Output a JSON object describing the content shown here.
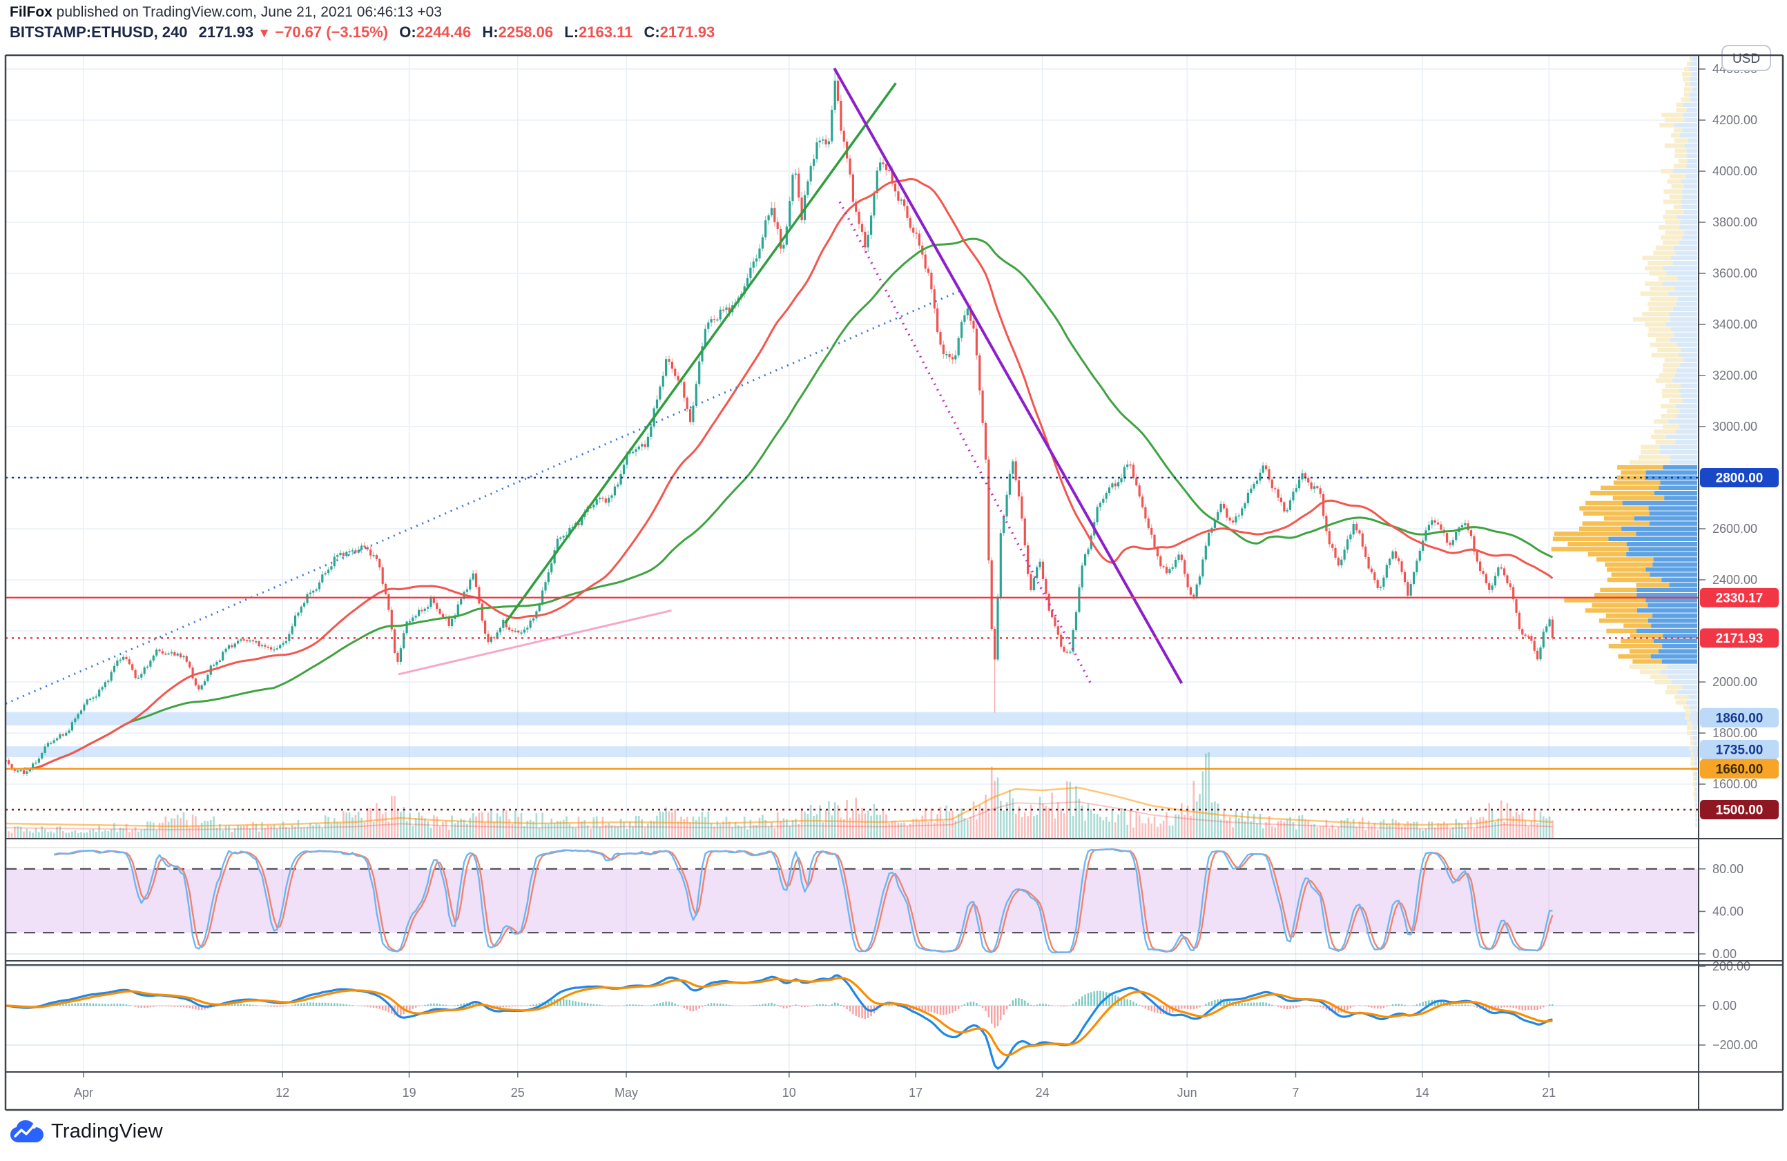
{
  "attribution": {
    "author": "FilFox",
    "rest": " published on TradingView.com, June 21, 2021 06:46:13 +03"
  },
  "symbol_line": {
    "symbol": "BITSTAMP:ETHUSD, 240",
    "last": "2171.93",
    "arrow": "▼",
    "change": "−70.67 (−3.15%)",
    "o_label": "O:",
    "o": "2244.46",
    "h_label": "H:",
    "h": "2258.06",
    "l_label": "L:",
    "l": "2163.11",
    "c_label": "C:",
    "c": "2171.93"
  },
  "currency_button": "USD",
  "watermark": "TradingView",
  "colors": {
    "grid": "#e8eff6",
    "frame": "#3e434c",
    "axis_text": "#73767f",
    "candle_up": "#2aa594",
    "candle_down": "#ef5350",
    "vol_up": "rgba(42,165,148,0.4)",
    "vol_down": "rgba(239,83,80,0.38)",
    "vol_ma1": "rgba(255,152,0,0.55)",
    "vol_ma2": "rgba(244,67,54,0.3)",
    "profile_pale_y": "#f8eecb",
    "profile_pale_b": "#d9e9f8",
    "profile_bright_y": "#f5bf52",
    "profile_bright_b": "#5ea1e4",
    "zone_blue": "rgba(144,191,249,0.38)",
    "stoch_k": "#6db6f2",
    "stoch_d": "#f2836e",
    "stoch_band": "rgba(164,80,222,0.17)",
    "stoch_dash": "#45494f",
    "macd_line": "#1e88e5",
    "macd_signal": "#fb8c00",
    "hist_pos": "rgba(38,166,154,0.6)",
    "hist_neg": "rgba(239,83,80,0.55)",
    "logo_blue": "#2962ff"
  },
  "chart_data": {
    "type": "candlestick+indicators",
    "symbol": "BITSTAMP:ETHUSD",
    "interval": "240",
    "price_axis": {
      "visible_min": 1386,
      "visible_max": 4454,
      "tick_step": 200,
      "ticks": [
        "4400.00",
        "4200.00",
        "4000.00",
        "3800.00",
        "3600.00",
        "3400.00",
        "3200.00",
        "3000.00",
        "2600.00",
        "2400.00",
        "2000.00",
        "1800.00",
        "1600.00"
      ],
      "tick_values": [
        4400,
        4200,
        4000,
        3800,
        3600,
        3400,
        3200,
        3000,
        2600,
        2400,
        2000,
        1800,
        1600
      ]
    },
    "time_axis": {
      "ticks": [
        {
          "label": "Apr",
          "t": 0
        },
        {
          "label": "12",
          "t": 11
        },
        {
          "label": "19",
          "t": 18
        },
        {
          "label": "25",
          "t": 24
        },
        {
          "label": "May",
          "t": 30
        },
        {
          "label": "10",
          "t": 39
        },
        {
          "label": "17",
          "t": 46
        },
        {
          "label": "24",
          "t": 53
        },
        {
          "label": "Jun",
          "t": 61
        },
        {
          "label": "7",
          "t": 67
        },
        {
          "label": "14",
          "t": 74
        },
        {
          "label": "21",
          "t": 81
        }
      ]
    },
    "last_candle": {
      "o": 2244.46,
      "h": 2258.06,
      "l": 2163.11,
      "c": 2171.93
    },
    "price_path_anchors": [
      [
        -4.3,
        1680
      ],
      [
        -3.8,
        1640
      ],
      [
        -3.2,
        1660
      ],
      [
        -2.5,
        1700
      ],
      [
        -1.5,
        1780
      ],
      [
        -0.5,
        1850
      ],
      [
        0.3,
        1920
      ],
      [
        1.2,
        2010
      ],
      [
        2.2,
        2090
      ],
      [
        3.0,
        2030
      ],
      [
        4.0,
        2100
      ],
      [
        5.2,
        2130
      ],
      [
        5.8,
        2060
      ],
      [
        6.3,
        1945
      ],
      [
        7.0,
        2070
      ],
      [
        8.2,
        2130
      ],
      [
        9.0,
        2190
      ],
      [
        10.2,
        2110
      ],
      [
        11.0,
        2160
      ],
      [
        12.2,
        2300
      ],
      [
        13.2,
        2430
      ],
      [
        14.5,
        2500
      ],
      [
        15.3,
        2550
      ],
      [
        16.2,
        2460
      ],
      [
        16.8,
        2330
      ],
      [
        17.3,
        2080
      ],
      [
        17.8,
        2210
      ],
      [
        18.5,
        2260
      ],
      [
        19.2,
        2340
      ],
      [
        20.2,
        2200
      ],
      [
        21.0,
        2360
      ],
      [
        21.5,
        2440
      ],
      [
        22.3,
        2130
      ],
      [
        23.2,
        2250
      ],
      [
        24.0,
        2170
      ],
      [
        24.6,
        2210
      ],
      [
        25.5,
        2390
      ],
      [
        26.2,
        2530
      ],
      [
        27.2,
        2640
      ],
      [
        28.2,
        2680
      ],
      [
        29.2,
        2750
      ],
      [
        30.0,
        2860
      ],
      [
        31.0,
        2940
      ],
      [
        32.2,
        3230
      ],
      [
        33.0,
        3190
      ],
      [
        33.6,
        3030
      ],
      [
        34.3,
        3350
      ],
      [
        35.2,
        3480
      ],
      [
        36.2,
        3460
      ],
      [
        37.2,
        3700
      ],
      [
        38.0,
        3850
      ],
      [
        38.6,
        3650
      ],
      [
        39.3,
        4060
      ],
      [
        39.7,
        3830
      ],
      [
        40.5,
        4080
      ],
      [
        41.2,
        4160
      ],
      [
        41.55,
        4380
      ],
      [
        41.9,
        4150
      ],
      [
        42.5,
        3880
      ],
      [
        43.2,
        3730
      ],
      [
        44.0,
        4030
      ],
      [
        44.6,
        3950
      ],
      [
        45.3,
        3900
      ],
      [
        46.2,
        3680
      ],
      [
        46.8,
        3560
      ],
      [
        47.5,
        3300
      ],
      [
        48.2,
        3250
      ],
      [
        48.8,
        3480
      ],
      [
        49.3,
        3370
      ],
      [
        49.85,
        2900
      ],
      [
        50.1,
        2300
      ],
      [
        50.35,
        2050
      ],
      [
        50.7,
        2560
      ],
      [
        51.3,
        2900
      ],
      [
        51.8,
        2700
      ],
      [
        52.3,
        2320
      ],
      [
        52.8,
        2480
      ],
      [
        53.4,
        2300
      ],
      [
        54.1,
        2120
      ],
      [
        54.5,
        2080
      ],
      [
        55.2,
        2470
      ],
      [
        56.0,
        2660
      ],
      [
        57.0,
        2780
      ],
      [
        57.8,
        2880
      ],
      [
        58.3,
        2710
      ],
      [
        59.1,
        2560
      ],
      [
        59.9,
        2420
      ],
      [
        60.6,
        2480
      ],
      [
        61.3,
        2330
      ],
      [
        62.0,
        2520
      ],
      [
        62.9,
        2690
      ],
      [
        63.6,
        2640
      ],
      [
        64.4,
        2710
      ],
      [
        65.3,
        2870
      ],
      [
        66.0,
        2720
      ],
      [
        66.5,
        2640
      ],
      [
        67.3,
        2840
      ],
      [
        68.3,
        2730
      ],
      [
        68.8,
        2540
      ],
      [
        69.4,
        2480
      ],
      [
        70.2,
        2610
      ],
      [
        71.0,
        2460
      ],
      [
        71.6,
        2380
      ],
      [
        72.4,
        2500
      ],
      [
        73.2,
        2360
      ],
      [
        74.0,
        2560
      ],
      [
        74.7,
        2620
      ],
      [
        75.5,
        2560
      ],
      [
        76.3,
        2620
      ],
      [
        77.0,
        2480
      ],
      [
        77.7,
        2380
      ],
      [
        78.3,
        2440
      ],
      [
        79.0,
        2330
      ],
      [
        79.5,
        2200
      ],
      [
        80.0,
        2180
      ],
      [
        80.4,
        2060
      ],
      [
        80.7,
        2180
      ],
      [
        81.0,
        2250
      ],
      [
        81.28,
        2172
      ]
    ],
    "levels": [
      {
        "price": 2800,
        "label": "2800.00",
        "line": "dotted",
        "color": "#16398f",
        "badge_bg": "#1848c8",
        "badge_fg": "#ffffff"
      },
      {
        "price": 2330.17,
        "label": "2330.17",
        "line": "solid",
        "color": "#f23645",
        "badge_bg": "#f23645",
        "badge_fg": "#ffffff"
      },
      {
        "price": 2171.93,
        "label": "2171.93",
        "line": "dotted",
        "color": "#f23645",
        "badge_bg": "#f23645",
        "badge_fg": "#ffffff"
      },
      {
        "price": 1860,
        "label": "1860.00",
        "line": "none",
        "color": "none",
        "badge_bg": "#bcd9f7",
        "badge_fg": "#16398f"
      },
      {
        "price": 1735,
        "label": "1735.00",
        "line": "none",
        "color": "none",
        "badge_bg": "#bcd9f7",
        "badge_fg": "#16398f"
      },
      {
        "price": 1660,
        "label": "1660.00",
        "line": "solid",
        "color": "#f7931a",
        "badge_bg": "#f7a427",
        "badge_fg": "#3b2c00"
      },
      {
        "price": 1500,
        "label": "1500.00",
        "line": "dotted",
        "color": "#7d1b24",
        "badge_bg": "#8f1722",
        "badge_fg": "#ffffff"
      }
    ],
    "zones": [
      {
        "from": 1830,
        "to": 1882
      },
      {
        "from": 1705,
        "to": 1748
      }
    ],
    "trendlines": [
      {
        "name": "uptrend-support-dotted-blue",
        "from": [
          -4.3,
          1915
        ],
        "to": [
          48.4,
          3530
        ],
        "color": "#3b78d8",
        "style": "dotted",
        "width": 3
      },
      {
        "name": "rally-trendline-green",
        "from": [
          23.3,
          2230
        ],
        "to": [
          44.9,
          4345
        ],
        "color": "#2f9e3f",
        "style": "solid",
        "width": 3.5
      },
      {
        "name": "downtrend-purple",
        "from": [
          41.5,
          4403
        ],
        "to": [
          60.7,
          1995
        ],
        "color": "#8c1fc9",
        "style": "solid",
        "width": 4
      },
      {
        "name": "downtrend-dotted-magenta",
        "from": [
          41.8,
          3880
        ],
        "to": [
          55.7,
          1990
        ],
        "color": "#c02ec0",
        "style": "dotted",
        "width": 3.5
      },
      {
        "name": "minor-support-pink",
        "from": [
          17.4,
          2030
        ],
        "to": [
          32.5,
          2280
        ],
        "color": "#f6a8c8",
        "style": "solid",
        "width": 3
      }
    ],
    "moving_averages": [
      {
        "name": "ma-fast-red",
        "period": 42,
        "color": "#f4564e"
      },
      {
        "name": "ma-slow-green",
        "period": 90,
        "color": "#3fa33f"
      }
    ],
    "volume_profile": {
      "value_area": [
        2080,
        2850
      ],
      "row_step": 20,
      "envelope": [
        [
          4440,
          0.05
        ],
        [
          4380,
          0.1
        ],
        [
          4330,
          0.07
        ],
        [
          4260,
          0.13
        ],
        [
          4200,
          0.27
        ],
        [
          4150,
          0.16
        ],
        [
          4100,
          0.21
        ],
        [
          4050,
          0.13
        ],
        [
          4000,
          0.23
        ],
        [
          3950,
          0.17
        ],
        [
          3900,
          0.23
        ],
        [
          3850,
          0.19
        ],
        [
          3800,
          0.27
        ],
        [
          3750,
          0.21
        ],
        [
          3700,
          0.27
        ],
        [
          3650,
          0.39
        ],
        [
          3600,
          0.31
        ],
        [
          3550,
          0.35
        ],
        [
          3500,
          0.37
        ],
        [
          3450,
          0.41
        ],
        [
          3400,
          0.43
        ],
        [
          3350,
          0.33
        ],
        [
          3300,
          0.31
        ],
        [
          3250,
          0.27
        ],
        [
          3200,
          0.29
        ],
        [
          3150,
          0.23
        ],
        [
          3100,
          0.21
        ],
        [
          3050,
          0.25
        ],
        [
          3000,
          0.27
        ],
        [
          2950,
          0.33
        ],
        [
          2900,
          0.41
        ],
        [
          2850,
          0.49
        ],
        [
          2800,
          0.54
        ],
        [
          2750,
          0.63
        ],
        [
          2700,
          0.69
        ],
        [
          2650,
          0.79
        ],
        [
          2600,
          0.83
        ],
        [
          2580,
          0.89
        ],
        [
          2560,
          0.94
        ],
        [
          2540,
          1.0
        ],
        [
          2520,
          0.88
        ],
        [
          2500,
          0.79
        ],
        [
          2480,
          0.86
        ],
        [
          2460,
          0.73
        ],
        [
          2440,
          0.68
        ],
        [
          2420,
          0.63
        ],
        [
          2400,
          0.64
        ],
        [
          2380,
          0.44
        ],
        [
          2360,
          0.71
        ],
        [
          2340,
          0.78
        ],
        [
          2320,
          0.82
        ],
        [
          2300,
          0.74
        ],
        [
          2280,
          0.73
        ],
        [
          2260,
          0.63
        ],
        [
          2240,
          0.69
        ],
        [
          2220,
          0.63
        ],
        [
          2200,
          0.69
        ],
        [
          2180,
          0.44
        ],
        [
          2160,
          0.63
        ],
        [
          2140,
          0.57
        ],
        [
          2120,
          0.52
        ],
        [
          2100,
          0.56
        ],
        [
          2080,
          0.5
        ],
        [
          2060,
          0.5
        ],
        [
          2040,
          0.44
        ],
        [
          2020,
          0.29
        ],
        [
          2000,
          0.27
        ],
        [
          1980,
          0.24
        ],
        [
          1960,
          0.23
        ],
        [
          1940,
          0.16
        ],
        [
          1920,
          0.13
        ],
        [
          1900,
          0.11
        ],
        [
          1880,
          0.1
        ],
        [
          1860,
          0.1
        ],
        [
          1840,
          0.08
        ],
        [
          1800,
          0.065
        ],
        [
          1760,
          0.055
        ],
        [
          1720,
          0.045
        ],
        [
          1680,
          0.04
        ],
        [
          1640,
          0.035
        ],
        [
          1600,
          0.03
        ],
        [
          1560,
          0.025
        ],
        [
          1520,
          0.02
        ],
        [
          1480,
          0.015
        ],
        [
          1440,
          0.012
        ]
      ]
    },
    "volume_anchors": [
      [
        -4.3,
        12
      ],
      [
        0,
        14
      ],
      [
        3,
        18
      ],
      [
        6.3,
        30
      ],
      [
        8,
        16
      ],
      [
        12,
        20
      ],
      [
        15,
        30
      ],
      [
        16.8,
        40
      ],
      [
        17.3,
        58
      ],
      [
        18,
        34
      ],
      [
        20,
        22
      ],
      [
        22.3,
        30
      ],
      [
        25.5,
        26
      ],
      [
        28,
        22
      ],
      [
        31,
        26
      ],
      [
        32.2,
        34
      ],
      [
        34.3,
        30
      ],
      [
        36,
        22
      ],
      [
        38,
        26
      ],
      [
        39.3,
        30
      ],
      [
        41.55,
        40
      ],
      [
        42.5,
        44
      ],
      [
        43.2,
        38
      ],
      [
        45,
        26
      ],
      [
        47.5,
        36
      ],
      [
        49.3,
        40
      ],
      [
        50.1,
        70
      ],
      [
        50.35,
        88
      ],
      [
        50.7,
        62
      ],
      [
        51.3,
        48
      ],
      [
        52.3,
        40
      ],
      [
        54.1,
        56
      ],
      [
        54.5,
        62
      ],
      [
        55.2,
        48
      ],
      [
        56,
        36
      ],
      [
        57.8,
        30
      ],
      [
        59,
        24
      ],
      [
        61,
        40
      ],
      [
        61.9,
        116
      ],
      [
        63,
        30
      ],
      [
        65.3,
        26
      ],
      [
        67.3,
        24
      ],
      [
        69,
        20
      ],
      [
        71,
        22
      ],
      [
        73.2,
        20
      ],
      [
        75,
        18
      ],
      [
        77,
        24
      ],
      [
        78.3,
        46
      ],
      [
        79.5,
        30
      ],
      [
        80.4,
        34
      ],
      [
        81.28,
        26
      ]
    ],
    "volume_ma_anchors": [
      [
        -4.3,
        22
      ],
      [
        0,
        20
      ],
      [
        5,
        18
      ],
      [
        10,
        20
      ],
      [
        15,
        24
      ],
      [
        17.5,
        30
      ],
      [
        20,
        26
      ],
      [
        25,
        22
      ],
      [
        30,
        24
      ],
      [
        35,
        22
      ],
      [
        40,
        26
      ],
      [
        44,
        24
      ],
      [
        48,
        28
      ],
      [
        50.3,
        60
      ],
      [
        51.5,
        72
      ],
      [
        53,
        70
      ],
      [
        55,
        74
      ],
      [
        57,
        62
      ],
      [
        59,
        48
      ],
      [
        61,
        40
      ],
      [
        63,
        34
      ],
      [
        65,
        30
      ],
      [
        68,
        26
      ],
      [
        71,
        22
      ],
      [
        74,
        20
      ],
      [
        77,
        22
      ],
      [
        78.5,
        28
      ],
      [
        80,
        26
      ],
      [
        81.28,
        24
      ]
    ],
    "stochastic": {
      "k": 14,
      "smooth": 3,
      "d": 3,
      "bands": [
        20,
        80
      ],
      "labels": [
        "80.00",
        "40.00",
        "0.00"
      ],
      "label_values": [
        80,
        40,
        0
      ]
    },
    "macd": {
      "fast": 12,
      "slow": 26,
      "signal": 9,
      "labels": [
        "200.00",
        "0.00",
        "−200.00"
      ],
      "label_values": [
        200,
        0,
        -200
      ]
    }
  }
}
